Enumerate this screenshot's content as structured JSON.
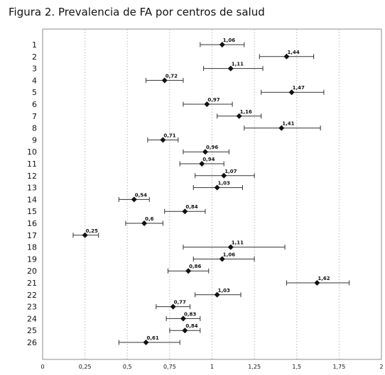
{
  "title": "Figura 2. Prevalencia de FA por centros de salud",
  "chart_data": {
    "type": "forest",
    "title": "Figura 2. Prevalencia de FA por centros de salud",
    "xlabel": "",
    "ylabel": "",
    "xlim": [
      0,
      2
    ],
    "x_ticks": [
      {
        "value": 0,
        "label": "0"
      },
      {
        "value": 0.25,
        "label": "0,25"
      },
      {
        "value": 0.5,
        "label": "0,5"
      },
      {
        "value": 0.75,
        "label": "0,75"
      },
      {
        "value": 1,
        "label": "1"
      },
      {
        "value": 1.25,
        "label": "1,25"
      },
      {
        "value": 1.5,
        "label": "1,5"
      },
      {
        "value": 1.75,
        "label": "1,75"
      },
      {
        "value": 2,
        "label": "2"
      }
    ],
    "grid": "vertical dashed",
    "marker": "diamond",
    "points": [
      {
        "category": "1",
        "value": 1.06,
        "label": "1,06",
        "ci_low": 0.93,
        "ci_high": 1.19
      },
      {
        "category": "2",
        "value": 1.44,
        "label": "1,44",
        "ci_low": 1.28,
        "ci_high": 1.6
      },
      {
        "category": "3",
        "value": 1.11,
        "label": "1,11",
        "ci_low": 0.95,
        "ci_high": 1.3
      },
      {
        "category": "4",
        "value": 0.72,
        "label": "0,72",
        "ci_low": 0.61,
        "ci_high": 0.83
      },
      {
        "category": "5",
        "value": 1.47,
        "label": "1,47",
        "ci_low": 1.29,
        "ci_high": 1.66
      },
      {
        "category": "6",
        "value": 0.97,
        "label": "0,97",
        "ci_low": 0.83,
        "ci_high": 1.12
      },
      {
        "category": "7",
        "value": 1.16,
        "label": "1,16",
        "ci_low": 1.03,
        "ci_high": 1.29
      },
      {
        "category": "8",
        "value": 1.41,
        "label": "1,41",
        "ci_low": 1.19,
        "ci_high": 1.64
      },
      {
        "category": "9",
        "value": 0.71,
        "label": "0,71",
        "ci_low": 0.62,
        "ci_high": 0.8
      },
      {
        "category": "10",
        "value": 0.96,
        "label": "0,96",
        "ci_low": 0.83,
        "ci_high": 1.1
      },
      {
        "category": "11",
        "value": 0.94,
        "label": "0,94",
        "ci_low": 0.81,
        "ci_high": 1.07
      },
      {
        "category": "12",
        "value": 1.07,
        "label": "1,07",
        "ci_low": 0.9,
        "ci_high": 1.25
      },
      {
        "category": "13",
        "value": 1.03,
        "label": "1,03",
        "ci_low": 0.89,
        "ci_high": 1.18
      },
      {
        "category": "14",
        "value": 0.54,
        "label": "0,54",
        "ci_low": 0.45,
        "ci_high": 0.63
      },
      {
        "category": "15",
        "value": 0.84,
        "label": "0,84",
        "ci_low": 0.72,
        "ci_high": 0.96
      },
      {
        "category": "16",
        "value": 0.6,
        "label": "0,6",
        "ci_low": 0.49,
        "ci_high": 0.71
      },
      {
        "category": "17",
        "value": 0.25,
        "label": "0,25",
        "ci_low": 0.18,
        "ci_high": 0.33
      },
      {
        "category": "18",
        "value": 1.11,
        "label": "1,11",
        "ci_low": 0.83,
        "ci_high": 1.43
      },
      {
        "category": "19",
        "value": 1.06,
        "label": "1,06",
        "ci_low": 0.89,
        "ci_high": 1.25
      },
      {
        "category": "20",
        "value": 0.86,
        "label": "0,86",
        "ci_low": 0.74,
        "ci_high": 0.98
      },
      {
        "category": "21",
        "value": 1.62,
        "label": "1,62",
        "ci_low": 1.44,
        "ci_high": 1.81
      },
      {
        "category": "22",
        "value": 1.03,
        "label": "1,03",
        "ci_low": 0.9,
        "ci_high": 1.17
      },
      {
        "category": "23",
        "value": 0.77,
        "label": "0,77",
        "ci_low": 0.67,
        "ci_high": 0.87
      },
      {
        "category": "24",
        "value": 0.83,
        "label": "0,83",
        "ci_low": 0.73,
        "ci_high": 0.93
      },
      {
        "category": "25",
        "value": 0.84,
        "label": "0,84",
        "ci_low": 0.75,
        "ci_high": 0.93
      },
      {
        "category": "26",
        "value": 0.61,
        "label": "0,61",
        "ci_low": 0.45,
        "ci_high": 0.81
      }
    ]
  }
}
